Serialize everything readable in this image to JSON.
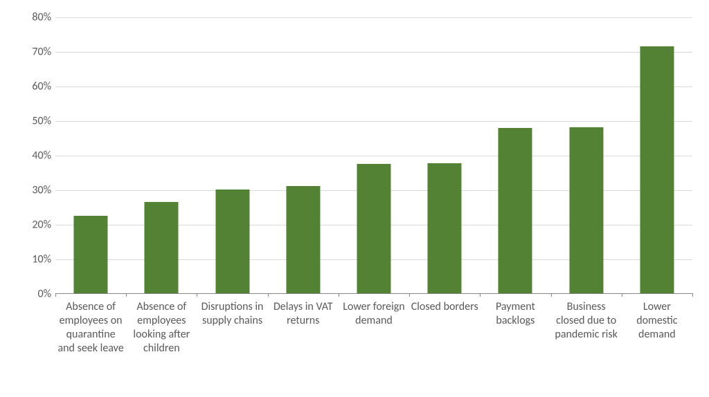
{
  "chart": {
    "type": "bar",
    "background_color": "#ffffff",
    "grid_color": "#d9d9d9",
    "axis_color": "#868686",
    "bar_color": "#548235",
    "label_color": "#595959",
    "fontsize": 16,
    "ylim": [
      0,
      80
    ],
    "ytick_step": 10,
    "ytick_suffix": "%",
    "bar_width_pct": 48,
    "categories": [
      "Absence of employees on quarantine and seek leave",
      "Absence of employees looking after children",
      "Disruptions in supply chains",
      "Delays in VAT returns",
      "Lower foreign demand",
      "Closed borders",
      "Payment backlogs",
      "Business closed due to pandemic risk",
      "Lower domestic demand"
    ],
    "values": [
      22.5,
      26.5,
      30,
      31,
      37.5,
      37.7,
      48,
      48.2,
      71.5
    ]
  }
}
